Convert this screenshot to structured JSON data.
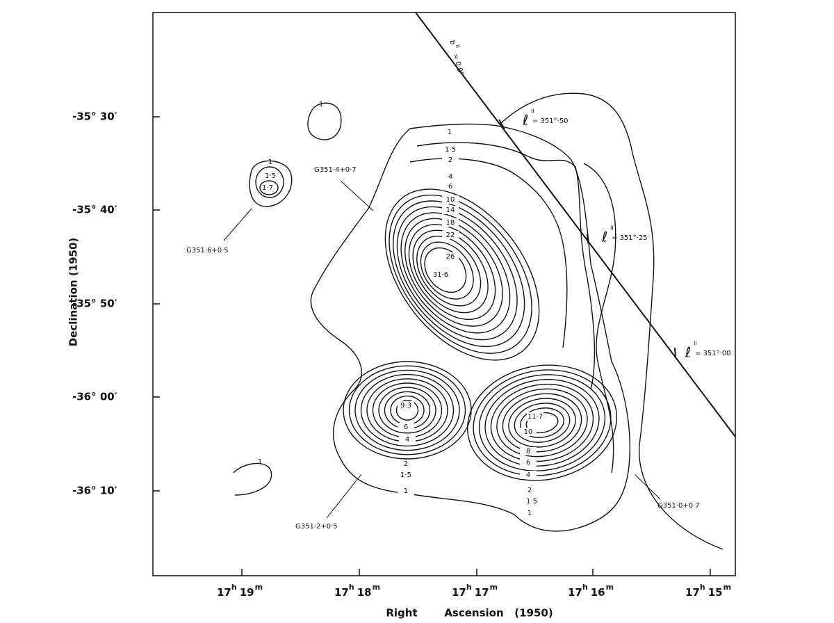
{
  "figure": {
    "x_axis": {
      "label_parts": [
        "Right",
        "Ascension",
        "(1950)"
      ],
      "ticks": [
        [
          "17",
          "h",
          "19",
          "m"
        ],
        [
          "17",
          "h",
          "18",
          "m"
        ],
        [
          "17",
          "h",
          "17",
          "m"
        ],
        [
          "17",
          "h",
          "16",
          "m"
        ],
        [
          "17",
          "h",
          "15",
          "m"
        ]
      ]
    },
    "y_axis": {
      "label": "Declination (1950)",
      "ticks": [
        "-35° 30′",
        "-35° 40′",
        "-35° 50′",
        "-36° 00′",
        "-36° 10′"
      ]
    },
    "sources": [
      "G351·4+0·7",
      "G351·6+0·5",
      "G351·2+0·5",
      "G351·0+0·7"
    ],
    "galactic_line": {
      "latitude": {
        "symbol": "b",
        "superscript": "II",
        "value": "= 0·9°"
      },
      "longitudes": [
        {
          "symbol": "ℓ",
          "superscript": "II",
          "value": "= 351°·50"
        },
        {
          "symbol": "ℓ",
          "superscript": "II",
          "value": "= 351°·25"
        },
        {
          "symbol": "ℓ",
          "superscript": "II",
          "value": "= 351°·00"
        }
      ]
    },
    "contour_labels": {
      "isolated_north": [
        "1"
      ],
      "g351_6": [
        "1",
        "1·5",
        "1·7"
      ],
      "g351_4": [
        "1",
        "1·5",
        "2",
        "4",
        "6",
        "10",
        "14",
        "18",
        "22",
        "26",
        "31·6"
      ],
      "g351_2": [
        "9·3",
        "6",
        "4",
        "2",
        "1·5",
        "1"
      ],
      "g351_0": [
        "11·7",
        "10",
        "8",
        "6",
        "4",
        "2",
        "1·5",
        "1"
      ],
      "isolated_south": [
        "1"
      ]
    }
  }
}
